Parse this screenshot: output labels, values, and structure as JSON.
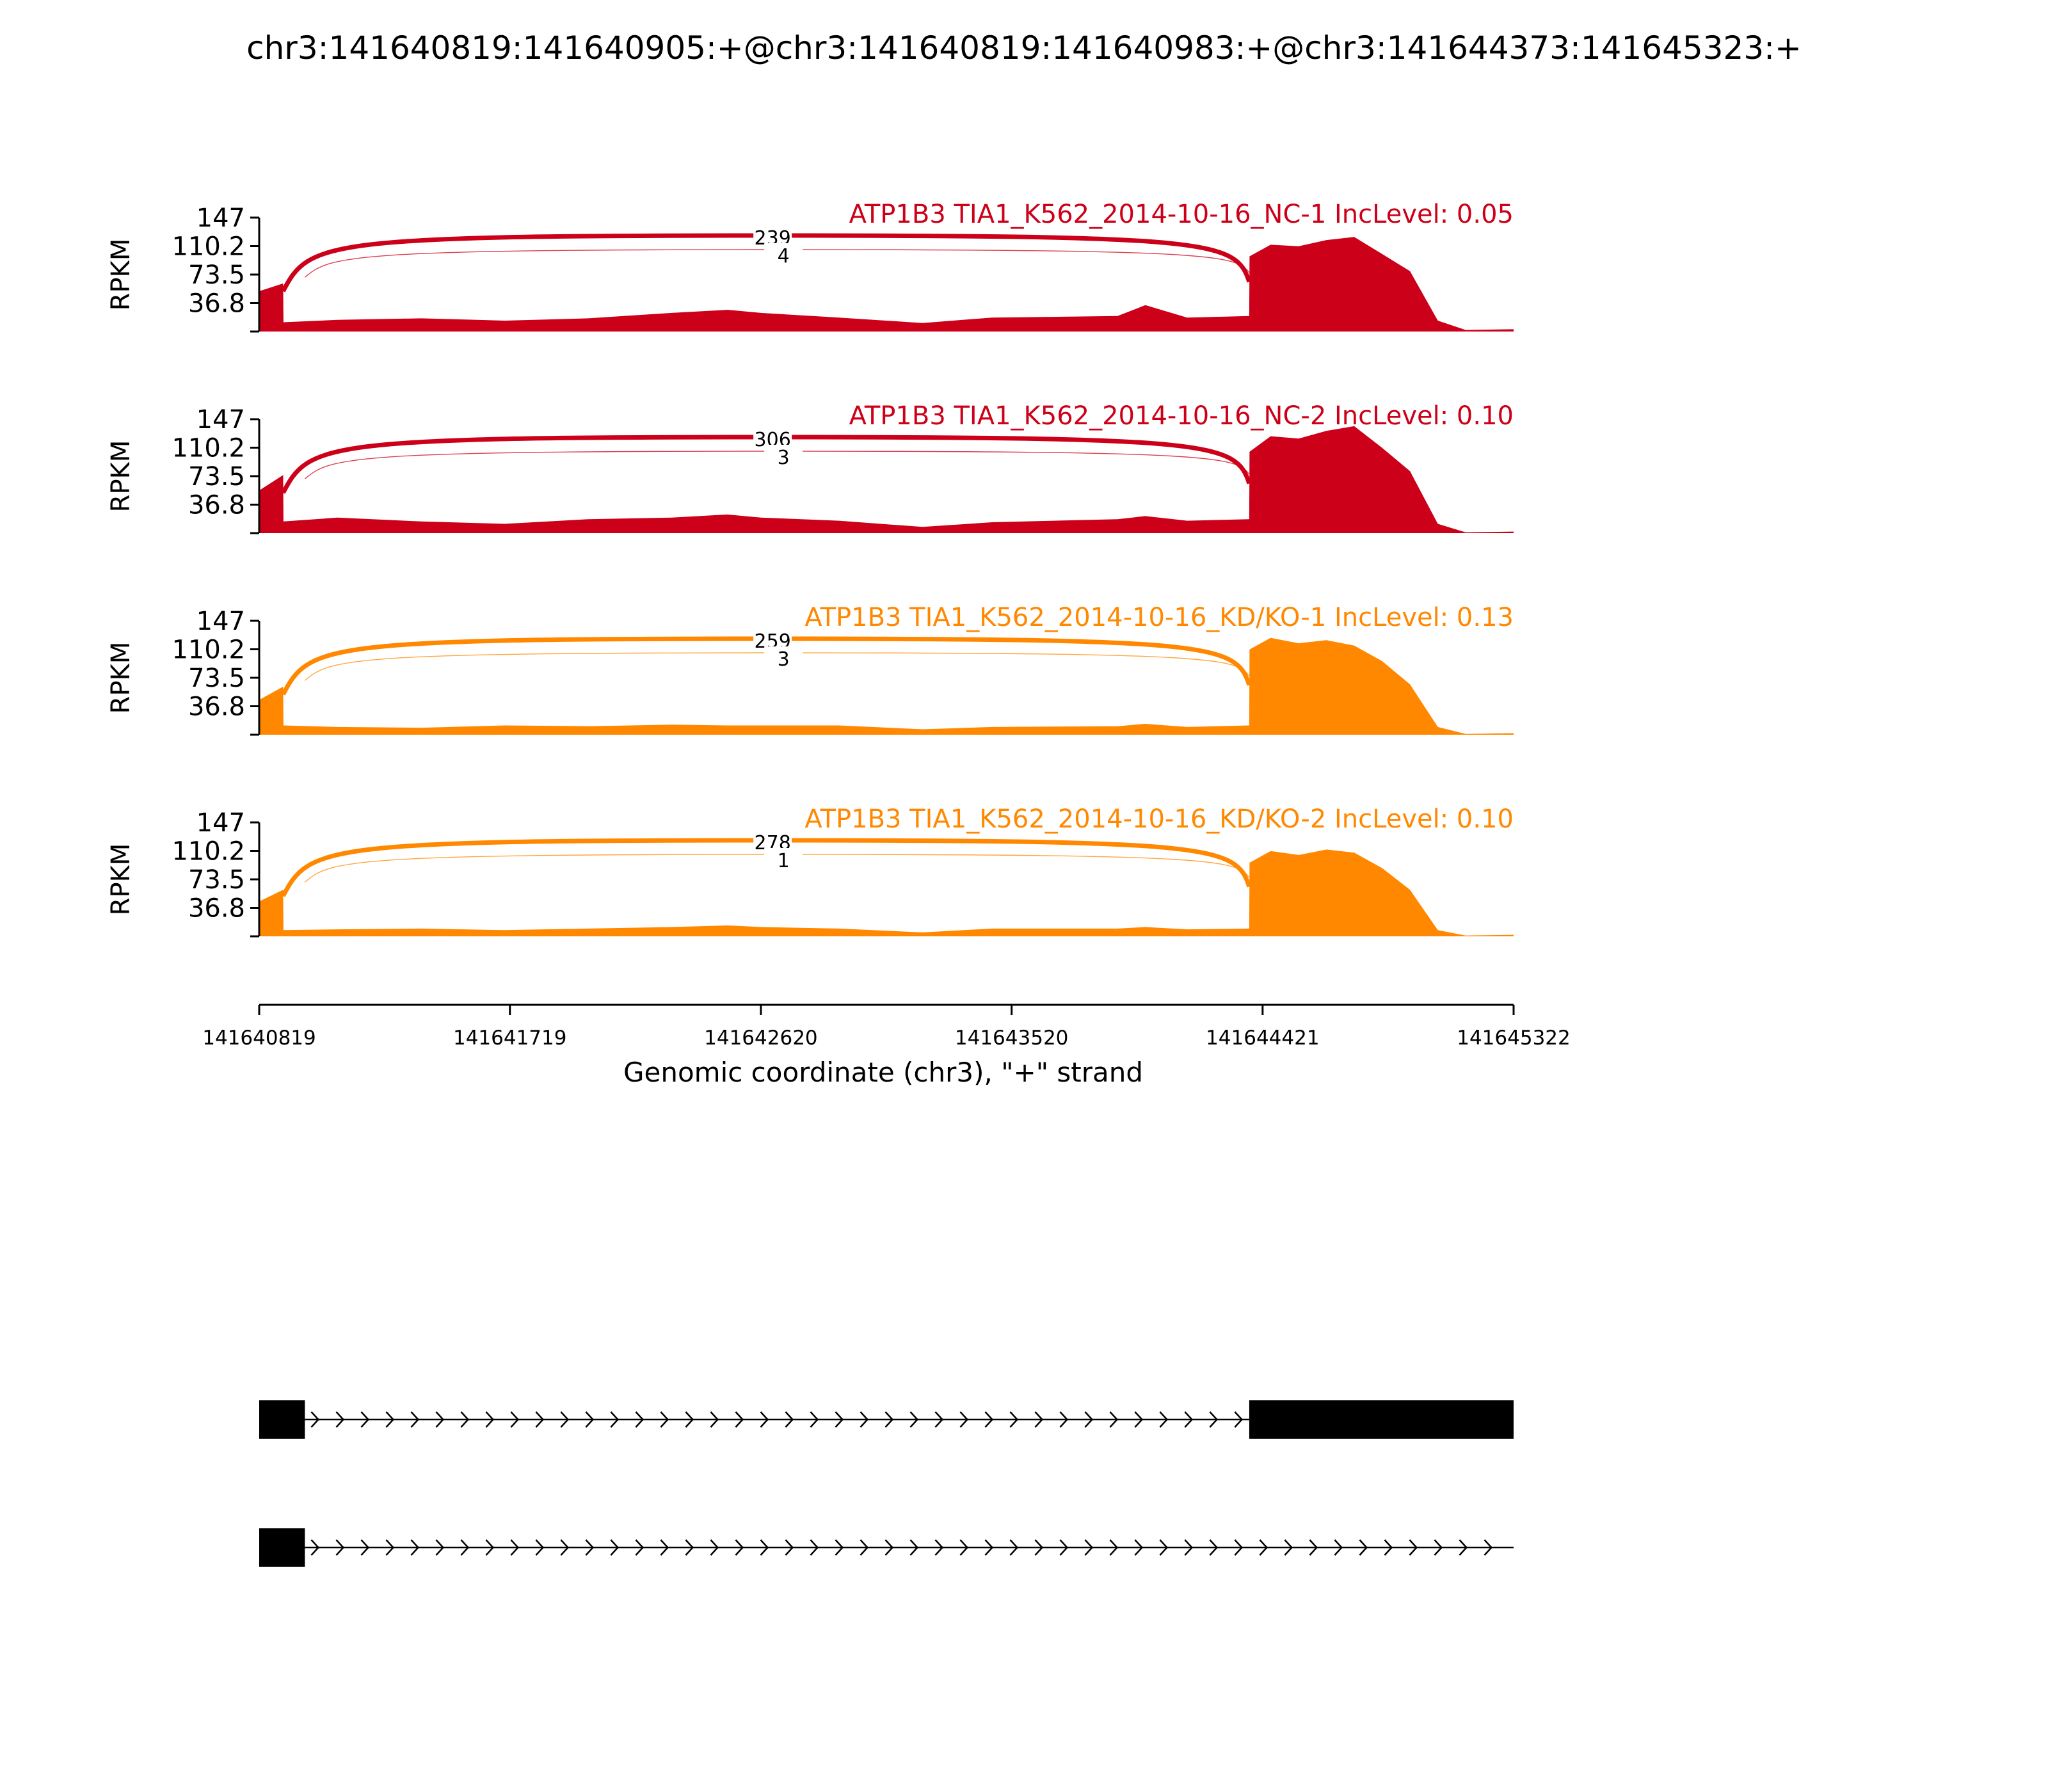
{
  "title": "chr3:141640819:141640905:+@chr3:141640819:141640983:+@chr3:141644373:141645323:+",
  "chart_data": {
    "type": "area",
    "subtype": "sashimi",
    "title": "chr3:141640819:141640905:+@chr3:141640819:141640983:+@chr3:141644373:141645323:+",
    "xlabel": "Genomic coordinate (chr3), \"+\" strand",
    "ylabel": "RPKM",
    "xlim": [
      141640819,
      141645322
    ],
    "ylim": [
      0,
      147
    ],
    "x_ticks": [
      "141640819",
      "141641719",
      "141642620",
      "141643520",
      "141644421",
      "141645322"
    ],
    "y_ticks": [
      "147",
      "110.2",
      "73.5",
      "36.8"
    ],
    "exon_regions": [
      {
        "start": 141640819,
        "end": 141640905,
        "level": 52
      },
      {
        "start": 141640905,
        "end": 141640983,
        "level": 70
      },
      {
        "start": 141644373,
        "end": 141645323,
        "level": 0
      }
    ],
    "tracks": [
      {
        "label": "ATP1B3 TIA1_K562_2014-10-16_NC-1 IncLevel: 0.05",
        "color": "#cc0018",
        "junctions": [
          {
            "count": "239",
            "from": 141640905,
            "to": 141644373
          },
          {
            "count": "4",
            "from": 141640983,
            "to": 141644373
          }
        ],
        "profile": [
          {
            "x": 141640819,
            "y": 52
          },
          {
            "x": 141640905,
            "y": 62
          },
          {
            "x": 141640906,
            "y": 12
          },
          {
            "x": 141641100,
            "y": 15
          },
          {
            "x": 141641400,
            "y": 17
          },
          {
            "x": 141641700,
            "y": 14
          },
          {
            "x": 141642000,
            "y": 17
          },
          {
            "x": 141642300,
            "y": 24
          },
          {
            "x": 141642500,
            "y": 28
          },
          {
            "x": 141642620,
            "y": 24
          },
          {
            "x": 141642900,
            "y": 18
          },
          {
            "x": 141643200,
            "y": 11
          },
          {
            "x": 141643450,
            "y": 18
          },
          {
            "x": 141643900,
            "y": 20
          },
          {
            "x": 141644000,
            "y": 34
          },
          {
            "x": 141644150,
            "y": 18
          },
          {
            "x": 141644373,
            "y": 20
          },
          {
            "x": 141644374,
            "y": 97
          },
          {
            "x": 141644450,
            "y": 112
          },
          {
            "x": 141644550,
            "y": 110
          },
          {
            "x": 141644650,
            "y": 118
          },
          {
            "x": 141644750,
            "y": 122
          },
          {
            "x": 141644850,
            "y": 100
          },
          {
            "x": 141644950,
            "y": 78
          },
          {
            "x": 141645050,
            "y": 14
          },
          {
            "x": 141645150,
            "y": 2
          },
          {
            "x": 141645322,
            "y": 3
          }
        ]
      },
      {
        "label": "ATP1B3 TIA1_K562_2014-10-16_NC-2 IncLevel: 0.10",
        "color": "#cc0018",
        "junctions": [
          {
            "count": "306",
            "from": 141640905,
            "to": 141644373
          },
          {
            "count": "3",
            "from": 141640983,
            "to": 141644373
          }
        ],
        "profile": [
          {
            "x": 141640819,
            "y": 55
          },
          {
            "x": 141640905,
            "y": 75
          },
          {
            "x": 141640906,
            "y": 15
          },
          {
            "x": 141641100,
            "y": 20
          },
          {
            "x": 141641400,
            "y": 15
          },
          {
            "x": 141641700,
            "y": 12
          },
          {
            "x": 141642000,
            "y": 18
          },
          {
            "x": 141642300,
            "y": 20
          },
          {
            "x": 141642500,
            "y": 24
          },
          {
            "x": 141642620,
            "y": 20
          },
          {
            "x": 141642900,
            "y": 16
          },
          {
            "x": 141643200,
            "y": 8
          },
          {
            "x": 141643450,
            "y": 14
          },
          {
            "x": 141643900,
            "y": 18
          },
          {
            "x": 141644000,
            "y": 22
          },
          {
            "x": 141644150,
            "y": 16
          },
          {
            "x": 141644373,
            "y": 18
          },
          {
            "x": 141644374,
            "y": 105
          },
          {
            "x": 141644450,
            "y": 125
          },
          {
            "x": 141644550,
            "y": 122
          },
          {
            "x": 141644650,
            "y": 132
          },
          {
            "x": 141644750,
            "y": 138
          },
          {
            "x": 141644850,
            "y": 110
          },
          {
            "x": 141644950,
            "y": 80
          },
          {
            "x": 141645050,
            "y": 12
          },
          {
            "x": 141645150,
            "y": 1
          },
          {
            "x": 141645322,
            "y": 2
          }
        ]
      },
      {
        "label": "ATP1B3 TIA1_K562_2014-10-16_KD/KO-1 IncLevel: 0.13",
        "color": "#ff8800",
        "junctions": [
          {
            "count": "259",
            "from": 141640905,
            "to": 141644373
          },
          {
            "count": "3",
            "from": 141640983,
            "to": 141644373
          }
        ],
        "profile": [
          {
            "x": 141640819,
            "y": 45
          },
          {
            "x": 141640905,
            "y": 62
          },
          {
            "x": 141640906,
            "y": 12
          },
          {
            "x": 141641100,
            "y": 10
          },
          {
            "x": 141641400,
            "y": 9
          },
          {
            "x": 141641700,
            "y": 12
          },
          {
            "x": 141642000,
            "y": 11
          },
          {
            "x": 141642300,
            "y": 13
          },
          {
            "x": 141642500,
            "y": 12
          },
          {
            "x": 141642620,
            "y": 12
          },
          {
            "x": 141642900,
            "y": 12
          },
          {
            "x": 141643200,
            "y": 7
          },
          {
            "x": 141643450,
            "y": 10
          },
          {
            "x": 141643900,
            "y": 11
          },
          {
            "x": 141644000,
            "y": 14
          },
          {
            "x": 141644150,
            "y": 10
          },
          {
            "x": 141644373,
            "y": 12
          },
          {
            "x": 141644374,
            "y": 110
          },
          {
            "x": 141644450,
            "y": 125
          },
          {
            "x": 141644550,
            "y": 118
          },
          {
            "x": 141644650,
            "y": 122
          },
          {
            "x": 141644750,
            "y": 115
          },
          {
            "x": 141644850,
            "y": 95
          },
          {
            "x": 141644950,
            "y": 65
          },
          {
            "x": 141645050,
            "y": 10
          },
          {
            "x": 141645150,
            "y": 1
          },
          {
            "x": 141645322,
            "y": 2
          }
        ]
      },
      {
        "label": "ATP1B3 TIA1_K562_2014-10-16_KD/KO-2 IncLevel: 0.10",
        "color": "#ff8800",
        "junctions": [
          {
            "count": "278",
            "from": 141640905,
            "to": 141644373
          },
          {
            "count": "1",
            "from": 141640983,
            "to": 141644373
          }
        ],
        "profile": [
          {
            "x": 141640819,
            "y": 45
          },
          {
            "x": 141640905,
            "y": 60
          },
          {
            "x": 141640906,
            "y": 8
          },
          {
            "x": 141641100,
            "y": 9
          },
          {
            "x": 141641400,
            "y": 10
          },
          {
            "x": 141641700,
            "y": 8
          },
          {
            "x": 141642000,
            "y": 10
          },
          {
            "x": 141642300,
            "y": 12
          },
          {
            "x": 141642500,
            "y": 14
          },
          {
            "x": 141642620,
            "y": 12
          },
          {
            "x": 141642900,
            "y": 10
          },
          {
            "x": 141643200,
            "y": 5
          },
          {
            "x": 141643450,
            "y": 10
          },
          {
            "x": 141643900,
            "y": 10
          },
          {
            "x": 141644000,
            "y": 12
          },
          {
            "x": 141644150,
            "y": 9
          },
          {
            "x": 141644373,
            "y": 10
          },
          {
            "x": 141644374,
            "y": 95
          },
          {
            "x": 141644450,
            "y": 110
          },
          {
            "x": 141644550,
            "y": 105
          },
          {
            "x": 141644650,
            "y": 112
          },
          {
            "x": 141644750,
            "y": 108
          },
          {
            "x": 141644850,
            "y": 88
          },
          {
            "x": 141644950,
            "y": 60
          },
          {
            "x": 141645050,
            "y": 8
          },
          {
            "x": 141645150,
            "y": 1
          },
          {
            "x": 141645322,
            "y": 2
          }
        ]
      }
    ],
    "isoforms": [
      {
        "exons": [
          {
            "start": 141640819,
            "end": 141640983
          },
          {
            "start": 141644373,
            "end": 141645322
          }
        ],
        "intron_end": 141644373
      },
      {
        "exons": [
          {
            "start": 141640819,
            "end": 141640983
          }
        ],
        "intron_end": 141645322
      }
    ],
    "grid": false
  },
  "colors": {
    "nc": "#cc0018",
    "kd": "#ff8800",
    "axis": "#000000",
    "isoform": "#000000"
  }
}
